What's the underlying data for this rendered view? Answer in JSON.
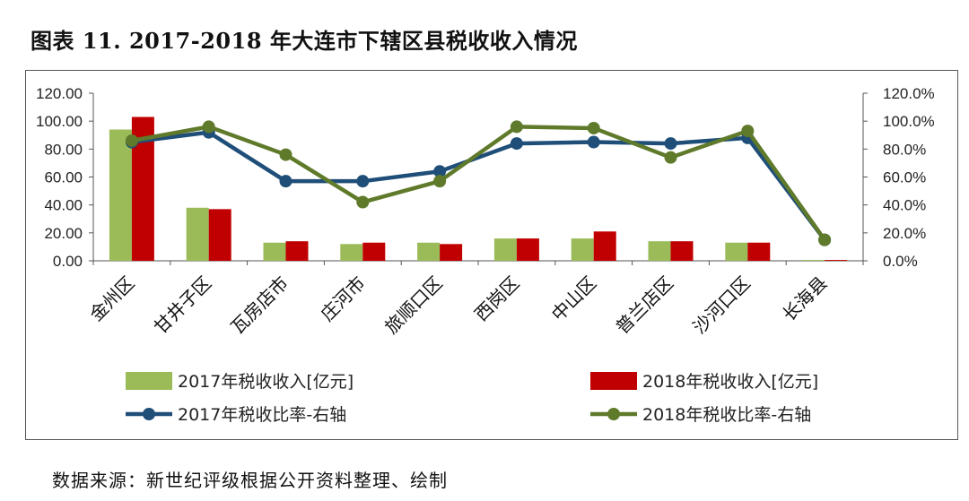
{
  "page": {
    "title": "图表 11. 2017-2018 年大连市下辖区县税收收入情况",
    "source": "数据来源：新世纪评级根据公开资料整理、绘制"
  },
  "colors": {
    "bar2017": "#9bbb59",
    "bar2018": "#c00000",
    "line2017": "#1f4e79",
    "line2018": "#5f7a2a"
  },
  "chart_data": {
    "type": "bar",
    "categories": [
      "金州区",
      "甘井子区",
      "瓦房店市",
      "庄河市",
      "旅顺口区",
      "西岗区",
      "中山区",
      "普兰店区",
      "沙河口区",
      "长海县"
    ],
    "series": [
      {
        "name": "2017年税收收入[亿元]",
        "kind": "bar",
        "axis": "left",
        "values": [
          94,
          38,
          13,
          12,
          13,
          16,
          16,
          14,
          13,
          0.6
        ]
      },
      {
        "name": "2018年税收收入[亿元]",
        "kind": "bar",
        "axis": "left",
        "values": [
          103,
          37,
          14,
          13,
          12,
          16,
          21,
          14,
          13,
          0.6
        ]
      },
      {
        "name": "2017年税收比率-右轴",
        "kind": "line",
        "axis": "right",
        "values": [
          85,
          92,
          57,
          57,
          64,
          84,
          85,
          84,
          88,
          15
        ]
      },
      {
        "name": "2018年税收比率-右轴",
        "kind": "line",
        "axis": "right",
        "values": [
          86,
          96,
          76,
          42,
          57,
          96,
          95,
          74,
          93,
          15
        ]
      }
    ],
    "y_left": {
      "ylim": [
        0,
        120
      ],
      "ticks": [
        "0.00",
        "20.00",
        "40.00",
        "60.00",
        "80.00",
        "100.00",
        "120.00"
      ]
    },
    "y_right": {
      "ylim": [
        0,
        120
      ],
      "ticks": [
        "0.0%",
        "20.0%",
        "40.0%",
        "60.0%",
        "80.0%",
        "100.0%",
        "120.0%"
      ]
    },
    "grid": false,
    "legend": "bottom"
  }
}
